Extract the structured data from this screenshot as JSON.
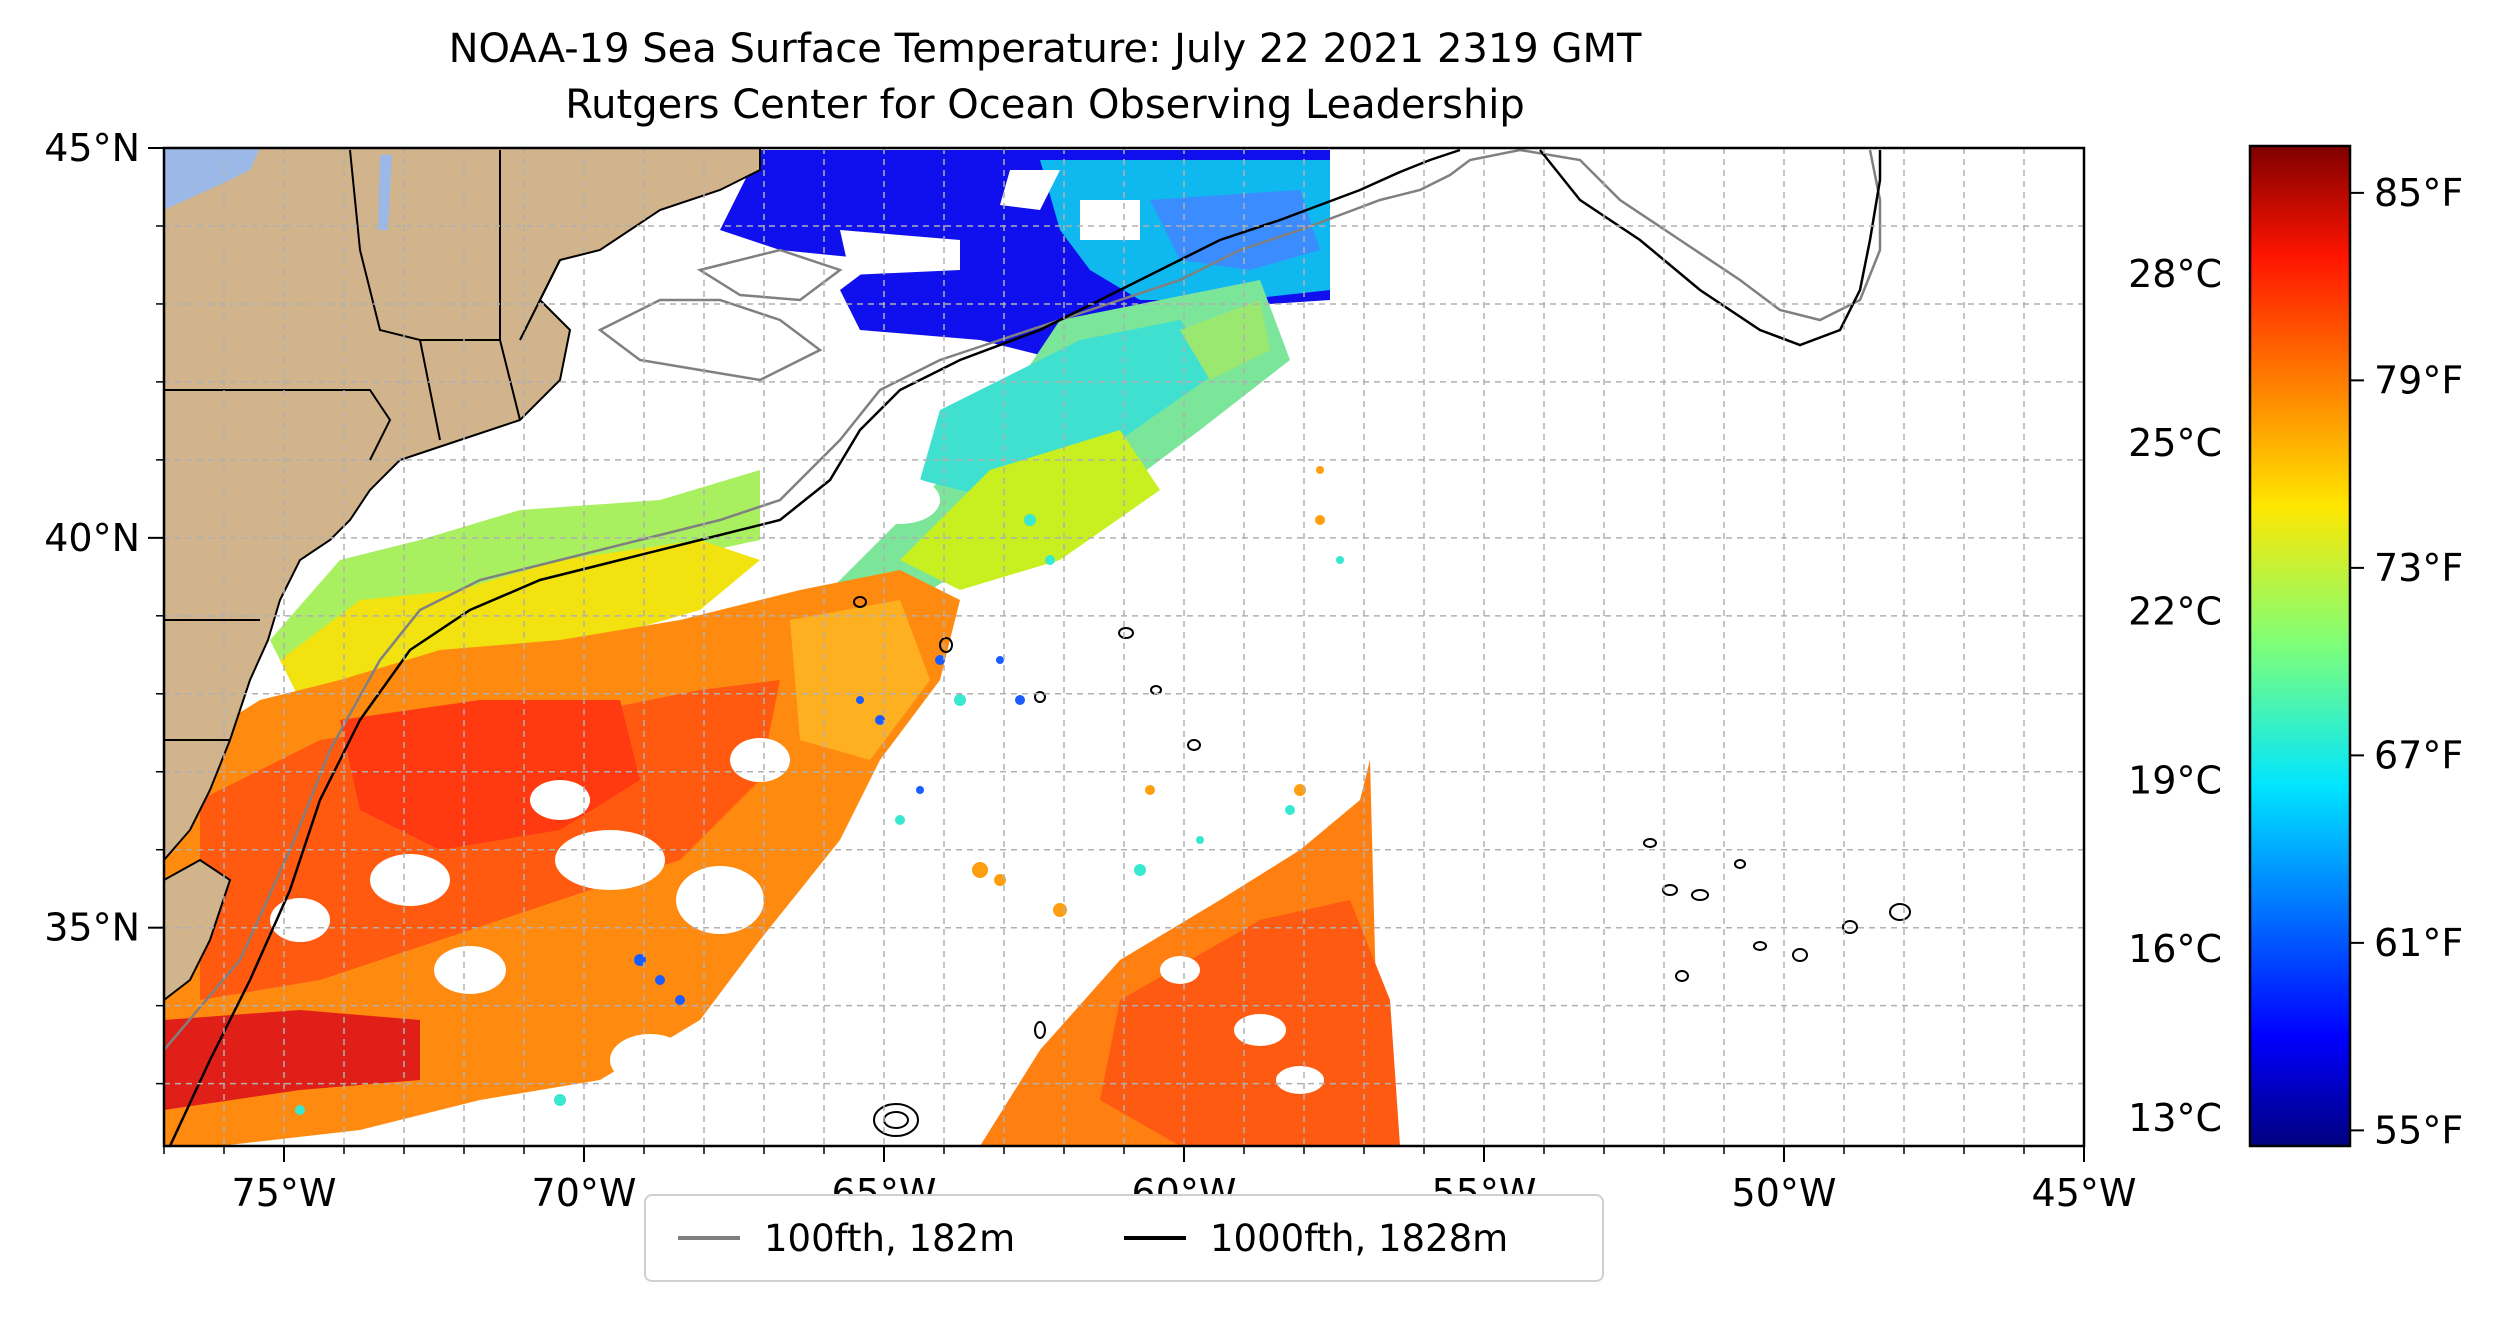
{
  "title": {
    "line1": "NOAA-19 Sea Surface Temperature: July 22 2021 2319 GMT",
    "line2": "Rutgers Center for Ocean Observing Leadership"
  },
  "map": {
    "lon_range": [
      -77,
      -45
    ],
    "lat_range": [
      32.2,
      45
    ],
    "lon_ticks": [
      -75,
      -70,
      -65,
      -60,
      -55,
      -50,
      -45
    ],
    "lon_tick_labels": [
      "75°W",
      "70°W",
      "65°W",
      "60°W",
      "55°W",
      "50°W",
      "45°W"
    ],
    "lat_ticks": [
      35,
      40,
      45
    ],
    "lat_tick_labels": [
      "35°N",
      "40°N",
      "45°N"
    ],
    "gridlines": true,
    "land_color": "#d2b48c",
    "water_color": "#ffffff",
    "lake_color": "#9cb8e6"
  },
  "colorbar": {
    "colormap": "jet",
    "range_f": [
      54.5,
      86.5
    ],
    "fahrenheit_ticks": [
      55,
      61,
      67,
      73,
      79,
      85
    ],
    "fahrenheit_labels": [
      "55°F",
      "61°F",
      "67°F",
      "73°F",
      "79°F",
      "85°F"
    ],
    "celsius_ticks": [
      13,
      16,
      19,
      22,
      25,
      28
    ],
    "celsius_labels": [
      "13°C",
      "16°C",
      "19°C",
      "22°C",
      "25°C",
      "28°C"
    ]
  },
  "legend": {
    "position": "bottom-center",
    "entries": [
      {
        "label": "100fth, 182m",
        "color": "#808080"
      },
      {
        "label": "1000fth, 1828m",
        "color": "#000000"
      }
    ]
  }
}
